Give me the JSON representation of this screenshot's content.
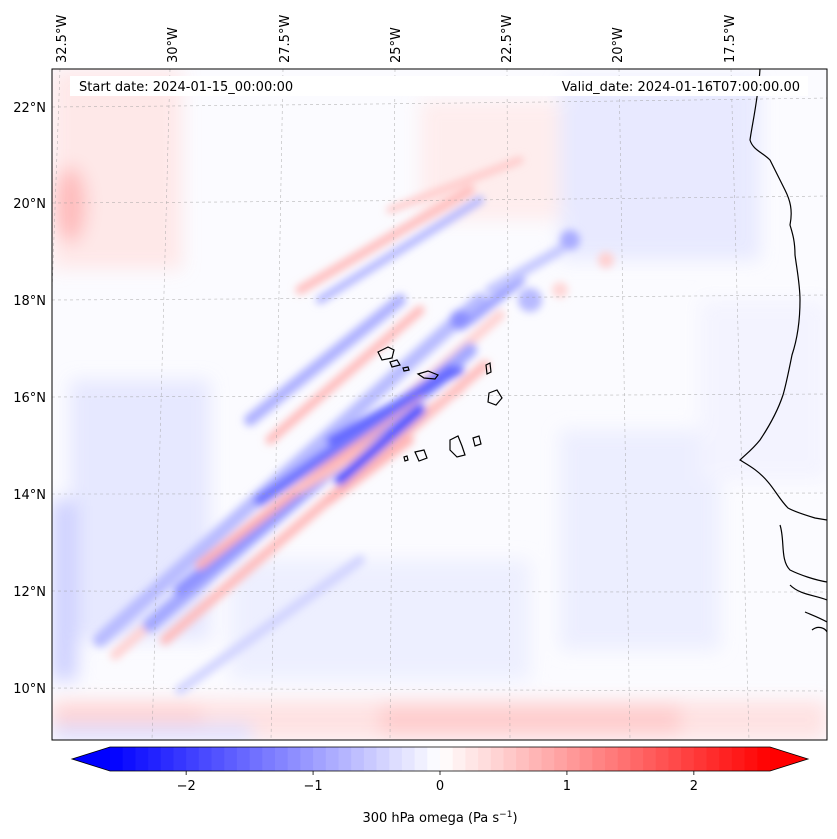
{
  "header": {
    "start_date": "Start date: 2024-01-15_00:00:00",
    "valid_date": "Valid_date: 2024-01-16T07:00:00.00"
  },
  "map": {
    "region": "Eastern tropical North Atlantic (Cape Verde / West Africa)",
    "lon_ticks": [
      "32.5°W",
      "30°W",
      "27.5°W",
      "25°W",
      "22.5°W",
      "20°W",
      "17.5°W"
    ],
    "lat_ticks": [
      "22°N",
      "20°N",
      "18°N",
      "16°N",
      "14°N",
      "12°N",
      "10°N"
    ],
    "gridlines": true,
    "field": "300 hPa vertical velocity (omega), blue = negative, red = positive"
  },
  "colorbar": {
    "label": "300 hPa omega (Pa s",
    "label_sup": "−1",
    "label_close": ")",
    "vmin": -2.6,
    "vmax": 2.6,
    "ticks": [
      {
        "value": -2,
        "label": "−2"
      },
      {
        "value": -1,
        "label": "−1"
      },
      {
        "value": 0,
        "label": "0"
      },
      {
        "value": 1,
        "label": "1"
      },
      {
        "value": 2,
        "label": "2"
      }
    ],
    "color_negative": "#0000ff",
    "color_zero": "#ffffff",
    "color_positive": "#ff0000",
    "extend": "both"
  }
}
